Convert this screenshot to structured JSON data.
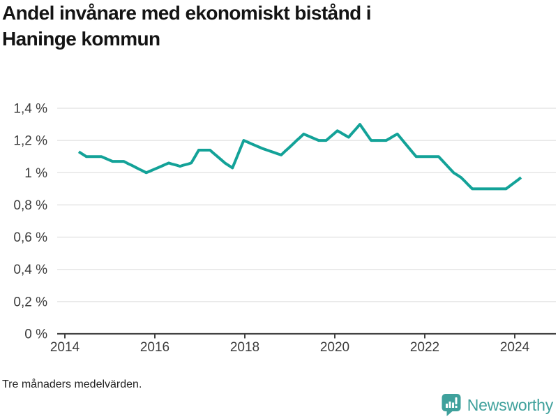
{
  "title_lines": [
    "Andel invånare med ekonomiskt bistånd i",
    "Haninge kommun"
  ],
  "footer": {
    "note": "Tre månaders medelvärden.",
    "brand": "Newsworthy"
  },
  "colors": {
    "line": "#13a298",
    "grid": "#e1e1e1",
    "axis": "#424242",
    "tick_text": "#3c3c3c",
    "title_text": "#141414",
    "brand_teal": "#3fa19c"
  },
  "chart_data": {
    "type": "line",
    "title": "Andel invånare med ekonomiskt bistånd i Haninge kommun",
    "subtitle_note": "Tre månaders medelvärden.",
    "unit": "%",
    "cadence": "monthly",
    "x_start_month": "2014-05",
    "x_end_month": "2024-03",
    "x_tick_labels": [
      "2014",
      "2016",
      "2018",
      "2020",
      "2022",
      "2024"
    ],
    "y_tick_labels": [
      "0 %",
      "0,2 %",
      "0,4 %",
      "0,6 %",
      "0,8 %",
      "1 %",
      "1,2 %",
      "1,4 %"
    ],
    "ylim": [
      0,
      1.4
    ],
    "y_tick_step": 0.2,
    "grid": "horizontal",
    "legend": "none",
    "series": [
      {
        "name": "Andel invånare med ekonomiskt bistånd",
        "values": [
          1.13,
          1.115,
          1.1,
          1.1,
          1.1,
          1.1,
          1.1,
          1.09,
          1.08,
          1.07,
          1.07,
          1.07,
          1.07,
          1.058,
          1.047,
          1.035,
          1.023,
          1.012,
          1.0,
          1.01,
          1.02,
          1.03,
          1.04,
          1.05,
          1.06,
          1.053,
          1.047,
          1.04,
          1.047,
          1.053,
          1.06,
          1.1,
          1.14,
          1.14,
          1.14,
          1.14,
          1.12,
          1.1,
          1.08,
          1.06,
          1.045,
          1.03,
          1.087,
          1.143,
          1.2,
          1.19,
          1.18,
          1.17,
          1.16,
          1.15,
          1.142,
          1.134,
          1.126,
          1.118,
          1.11,
          1.132,
          1.153,
          1.175,
          1.197,
          1.218,
          1.24,
          1.23,
          1.22,
          1.21,
          1.2,
          1.2,
          1.2,
          1.22,
          1.24,
          1.26,
          1.247,
          1.233,
          1.22,
          1.247,
          1.273,
          1.3,
          1.267,
          1.233,
          1.2,
          1.2,
          1.2,
          1.2,
          1.2,
          1.213,
          1.227,
          1.24,
          1.212,
          1.184,
          1.156,
          1.128,
          1.1,
          1.1,
          1.1,
          1.1,
          1.1,
          1.1,
          1.1,
          1.075,
          1.05,
          1.025,
          1.0,
          0.985,
          0.97,
          0.947,
          0.923,
          0.9,
          0.9,
          0.9,
          0.9,
          0.9,
          0.9,
          0.9,
          0.9,
          0.9,
          0.9,
          0.917,
          0.935,
          0.952,
          0.97
        ]
      }
    ]
  }
}
